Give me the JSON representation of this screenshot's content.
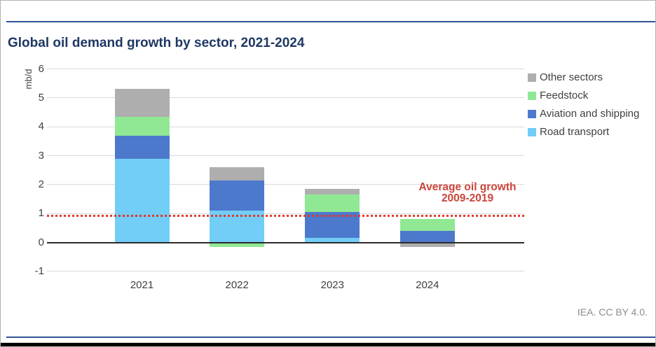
{
  "page": {
    "title": "Global oil demand growth by sector, 2021-2024",
    "attribution": "IEA. CC BY 4.0."
  },
  "colors": {
    "title_navy": "#1f3864",
    "rule_navy": "#2f5496",
    "annotation_red": "#cc443a",
    "average_line_red": "#e03a2d",
    "grid_gray": "#d9d9d9",
    "axis_black": "#2b2b2b",
    "text_dark": "#3f3f3f",
    "attribution_gray": "#8c8c8c"
  },
  "chart_data": {
    "type": "bar",
    "stacked": true,
    "title": "Global oil demand growth by sector, 2021-2024",
    "xlabel": "",
    "ylabel": "mb/d",
    "unit": "mb/d",
    "categories": [
      "2021",
      "2022",
      "2023",
      "2024"
    ],
    "series": [
      {
        "name": "Road transport",
        "color": "#72cdf7",
        "values": [
          2.9,
          1.1,
          0.15,
          0
        ]
      },
      {
        "name": "Aviation and shipping",
        "color": "#4d79cc",
        "values": [
          0.8,
          1.05,
          0.9,
          0.4
        ]
      },
      {
        "name": "Feedstock",
        "color": "#90e894",
        "values": [
          0.65,
          -0.15,
          0.6,
          0.4
        ]
      },
      {
        "name": "Other sectors",
        "color": "#aeaeae",
        "values": [
          0.95,
          0.45,
          0.2,
          -0.15
        ]
      }
    ],
    "totals_positive": [
      5.3,
      2.6,
      1.85,
      0.8
    ],
    "legend_order": [
      "Other sectors",
      "Feedstock",
      "Aviation and shipping",
      "Road transport"
    ],
    "legend_position": "right",
    "yticks": [
      6,
      5,
      4,
      3,
      2,
      1,
      0,
      -1
    ],
    "ylim": [
      -1,
      6
    ],
    "grid": true,
    "reference_line": {
      "value": 0.9,
      "label_lines": [
        "Average oil growth",
        "2009-2019"
      ]
    }
  }
}
